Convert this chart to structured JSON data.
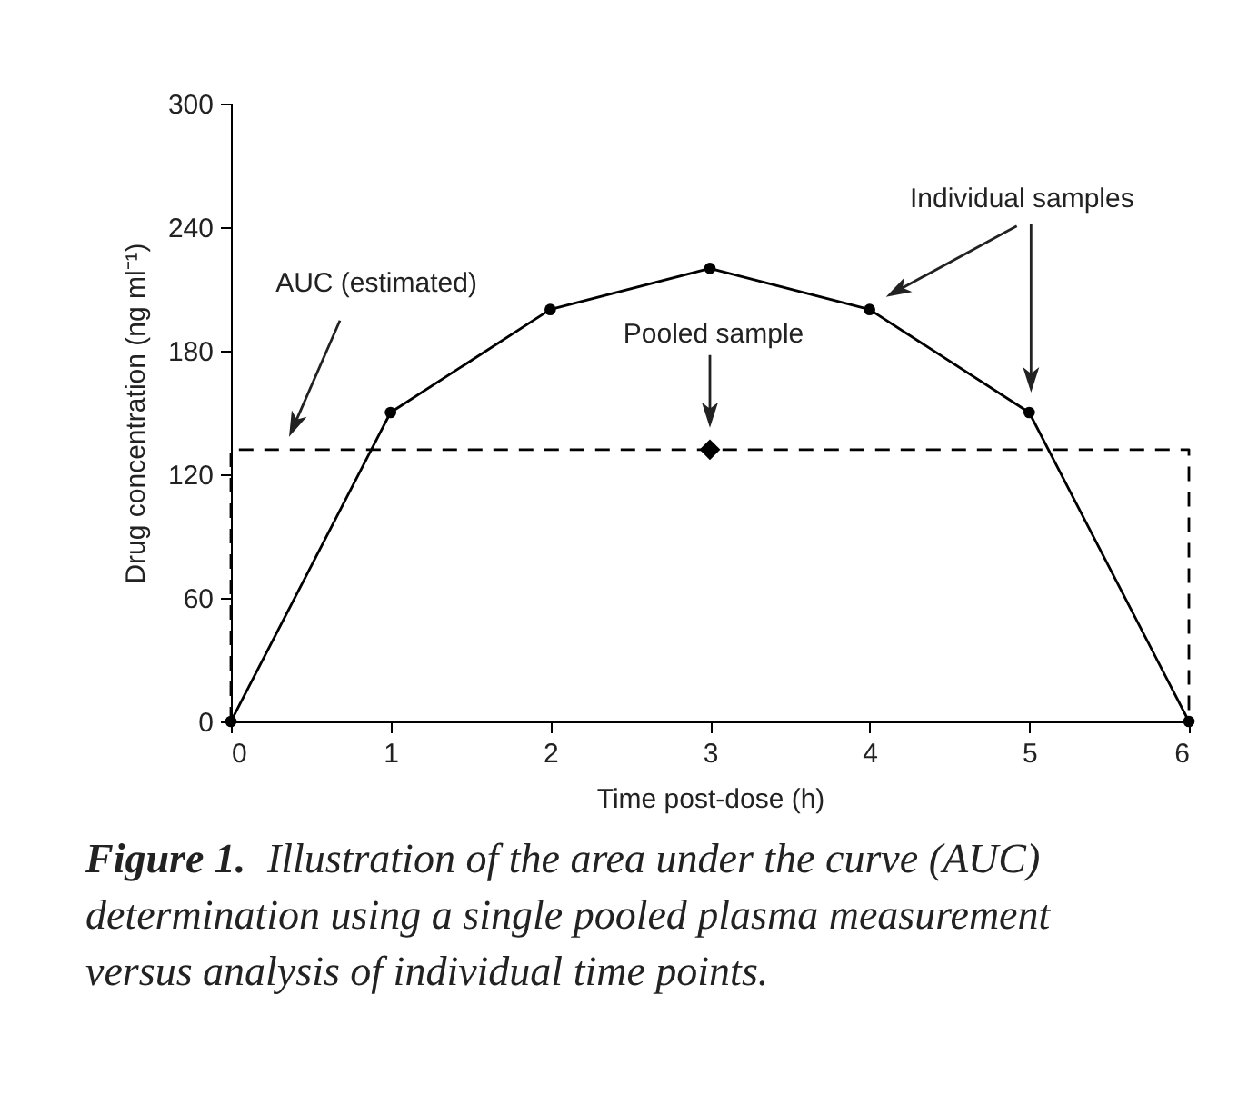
{
  "chart_data": {
    "type": "line",
    "xlabel": "Time post-dose (h)",
    "ylabel": "Drug concentration (ng ml⁻¹)",
    "xlim": [
      0,
      6
    ],
    "xticks": [
      0,
      1,
      2,
      3,
      4,
      5,
      6
    ],
    "ylim": [
      0,
      300
    ],
    "yticks": [
      0,
      60,
      120,
      180,
      240,
      300
    ],
    "series": [
      {
        "color": "#000000",
        "marker": "circle",
        "line_style": "solid",
        "x": [
          0,
          1,
          2,
          3,
          4,
          5,
          6
        ],
        "values": [
          0,
          150,
          200,
          220,
          200,
          150,
          0
        ]
      },
      {
        "type": "line",
        "color": "#000000",
        "marker": "none",
        "line_style": "dashed",
        "x": [
          0,
          0,
          6,
          6
        ],
        "values": [
          0,
          132,
          132,
          0
        ]
      },
      {
        "type": "scatter",
        "color": "#000000",
        "marker": "diamond",
        "x": [
          3
        ],
        "values": [
          132
        ]
      }
    ],
    "annotations": [
      "AUC (estimated)",
      "Pooled sample",
      "Individual samples",
      "Figure 1.",
      "Illustration of the area under the curve (AUC) determination using a single pooled plasma measurement versus analysis of individual time points."
    ]
  }
}
